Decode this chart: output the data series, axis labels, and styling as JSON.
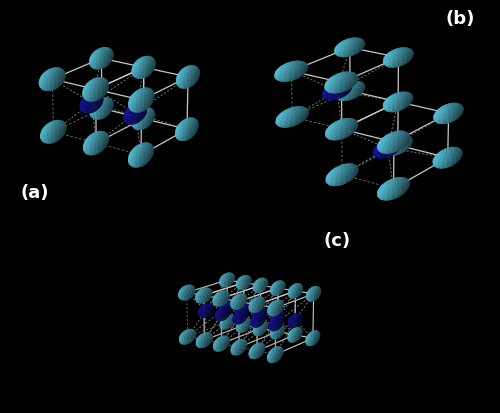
{
  "bg_color": "#000000",
  "cyan_color": "#5BC8E0",
  "cyan_edge": "#8EDDEE",
  "blue_color": "#1515A0",
  "blue_edge": "#2525C0",
  "line_color": "#C8C8C8",
  "dash_color": "#888888",
  "label_color": "#FFFFFF",
  "label_fontsize": 13,
  "panel_a_label": "(a)",
  "panel_b_label": "(b)",
  "panel_c_label": "(c)",
  "elev_ab": 20,
  "azim_ab": -55,
  "elev_c": 15,
  "azim_c": -55
}
